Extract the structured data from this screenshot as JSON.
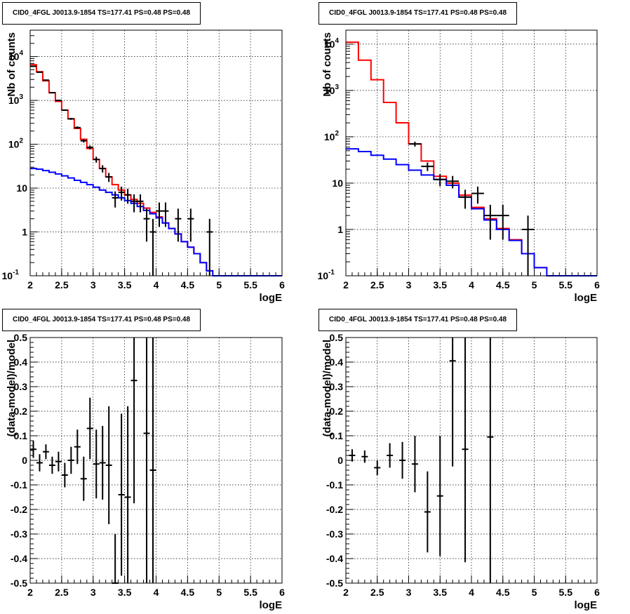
{
  "chart_data": [
    {
      "type": "line",
      "title": "CID0_4FGL J0013.9-1854 TS=177.41 PS=0.48 PS=0.48",
      "xlabel": "logE",
      "ylabel": "Nb of counts",
      "xlim": [
        2,
        6
      ],
      "ylim": [
        0.1,
        40000
      ],
      "yscale": "log",
      "grid": true,
      "x_ticks": [
        "2",
        "2.5",
        "3",
        "3.5",
        "4",
        "4.5",
        "5",
        "5.5",
        "6"
      ],
      "y_ticks": [
        [
          "0.1",
          "10",
          "-1"
        ],
        [
          "1",
          "1",
          ""
        ],
        [
          "10",
          "10",
          ""
        ],
        [
          "100",
          "10",
          "2"
        ],
        [
          "1000",
          "10",
          "3"
        ],
        [
          "10000",
          "10",
          "4"
        ]
      ],
      "bin_edges": [
        2.0,
        2.1,
        2.2,
        2.3,
        2.4,
        2.5,
        2.6,
        2.7,
        2.8,
        2.9,
        3.0,
        3.1,
        3.2,
        3.3,
        3.4,
        3.5,
        3.6,
        3.7,
        3.8,
        3.9,
        4.0,
        4.1,
        4.2,
        4.3,
        4.4,
        4.5,
        4.6,
        4.7,
        4.8,
        4.9,
        5.0,
        5.1,
        5.2,
        5.3,
        5.4,
        5.5,
        5.6,
        5.7,
        5.8,
        5.9,
        6.0
      ],
      "series": [
        {
          "color": "#ff0000",
          "kind": "step",
          "values": [
            6500,
            4500,
            2800,
            1500,
            950,
            600,
            380,
            230,
            130,
            80,
            45,
            28,
            18,
            12,
            9,
            7,
            5.5,
            4.5,
            3.5,
            2.8,
            2.2,
            1.6,
            1.2,
            0.9,
            0.6,
            0.45,
            0.32,
            0.2,
            0.13
          ]
        },
        {
          "color": "#0000ff",
          "kind": "step",
          "values": [
            28,
            27,
            25,
            23,
            21,
            19,
            17,
            15,
            13.5,
            12,
            10.5,
            9,
            8,
            7,
            6,
            5.2,
            4.5,
            3.8,
            3.1,
            2.6,
            2.1,
            1.6,
            1.2,
            0.9,
            0.6,
            0.45,
            0.32,
            0.2,
            0.13,
            0.1,
            0.1,
            0.1,
            0.1,
            0.1,
            0.1,
            0.1,
            0.1,
            0.1,
            0.1,
            0.1
          ]
        },
        {
          "color": "#000000",
          "kind": "points",
          "points": [
            [
              2.05,
              6000,
              77
            ],
            [
              2.15,
              4400,
              66
            ],
            [
              2.25,
              2900,
              54
            ],
            [
              2.35,
              1500,
              39
            ],
            [
              2.45,
              1000,
              32
            ],
            [
              2.55,
              600,
              24
            ],
            [
              2.65,
              380,
              19
            ],
            [
              2.75,
              240,
              15
            ],
            [
              2.85,
              120,
              11
            ],
            [
              2.95,
              85,
              9
            ],
            [
              3.05,
              45,
              7
            ],
            [
              3.15,
              28,
              5.3
            ],
            [
              3.25,
              18,
              4.2
            ],
            [
              3.35,
              6,
              2.4
            ],
            [
              3.45,
              8,
              2.8
            ],
            [
              3.55,
              7,
              2.6
            ],
            [
              3.65,
              5,
              2.2
            ],
            [
              3.75,
              5,
              2.2
            ],
            [
              3.85,
              2,
              1.4
            ],
            [
              3.95,
              1,
              0.99
            ],
            [
              4.05,
              3,
              1.7
            ],
            [
              4.15,
              3,
              1.7
            ],
            [
              4.35,
              2,
              1.4
            ],
            [
              4.55,
              2,
              1.4
            ],
            [
              4.85,
              1,
              0.99
            ]
          ]
        }
      ]
    },
    {
      "type": "line",
      "title": "CID0_4FGL J0013.9-1854 TS=177.41 PS=0.48 PS=0.48",
      "xlabel": "logE",
      "ylabel": "Nb of counts",
      "xlim": [
        2,
        6
      ],
      "ylim": [
        0.1,
        20000
      ],
      "yscale": "log",
      "grid": true,
      "x_ticks": [
        "2",
        "2.5",
        "3",
        "3.5",
        "4",
        "4.5",
        "5",
        "5.5",
        "6"
      ],
      "y_ticks": [
        [
          "0.1",
          "10",
          "-1"
        ],
        [
          "1",
          "1",
          ""
        ],
        [
          "10",
          "10",
          ""
        ],
        [
          "100",
          "10",
          "2"
        ],
        [
          "1000",
          "10",
          "3"
        ],
        [
          "10000",
          "10",
          "4"
        ]
      ],
      "bin_edges": [
        2.0,
        2.2,
        2.4,
        2.6,
        2.8,
        3.0,
        3.2,
        3.4,
        3.6,
        3.8,
        4.0,
        4.2,
        4.4,
        4.6,
        4.8,
        5.0,
        5.2,
        5.4,
        5.6,
        5.8,
        6.0
      ],
      "series": [
        {
          "color": "#ff0000",
          "kind": "step",
          "values": [
            11000,
            4500,
            1700,
            550,
            200,
            70,
            30,
            14,
            10,
            5.5,
            3,
            1.7,
            1.05,
            0.6,
            0.3,
            0.15
          ]
        },
        {
          "color": "#0000ff",
          "kind": "step",
          "values": [
            55,
            48,
            40,
            33,
            25,
            19,
            15,
            12,
            9,
            5,
            2.8,
            1.6,
            1.0,
            0.58,
            0.3,
            0.15,
            0.1,
            0.1,
            0.1,
            0.1
          ]
        },
        {
          "color": "#000000",
          "kind": "points",
          "points": [
            [
              3.1,
              70,
              8.4
            ],
            [
              3.3,
              23,
              4.8
            ],
            [
              3.5,
              12,
              3.5
            ],
            [
              3.7,
              11,
              3.3
            ],
            [
              3.9,
              5,
              2.2
            ],
            [
              4.1,
              6,
              2.4
            ],
            [
              4.3,
              2,
              1.4
            ],
            [
              4.5,
              2,
              1.4
            ],
            [
              4.9,
              1,
              0.99
            ]
          ]
        }
      ]
    },
    {
      "type": "scatter",
      "title": "CID0_4FGL J0013.9-1854 TS=177.41 PS=0.48 PS=0.48",
      "xlabel": "logE",
      "ylabel": "(data-model)/model",
      "xlim": [
        2,
        6
      ],
      "ylim": [
        -0.5,
        0.5
      ],
      "grid": true,
      "x_ticks": [
        "2",
        "2.5",
        "3",
        "3.5",
        "4",
        "4.5",
        "5",
        "5.5",
        "6"
      ],
      "y_ticks": [
        "-0.5",
        "-0.4",
        "-0.3",
        "-0.2",
        "-0.1",
        "0",
        "0.1",
        "0.2",
        "0.3",
        "0.4",
        "0.5"
      ],
      "points": [
        [
          2.05,
          0.045,
          0.035
        ],
        [
          2.15,
          -0.01,
          0.035
        ],
        [
          2.25,
          0.035,
          0.03
        ],
        [
          2.35,
          -0.02,
          0.035
        ],
        [
          2.45,
          -0.005,
          0.04
        ],
        [
          2.55,
          -0.06,
          0.05
        ],
        [
          2.65,
          0.0,
          0.055
        ],
        [
          2.75,
          0.055,
          0.07
        ],
        [
          2.85,
          -0.075,
          0.09
        ],
        [
          2.95,
          0.13,
          0.125
        ],
        [
          3.05,
          -0.015,
          0.14
        ],
        [
          3.15,
          -0.01,
          0.15
        ],
        [
          3.25,
          -0.02,
          0.24
        ],
        [
          3.35,
          -0.5,
          0.2
        ],
        [
          3.45,
          -0.14,
          0.33
        ],
        [
          3.55,
          -0.15,
          0.37
        ],
        [
          3.65,
          0.325,
          0.5
        ],
        [
          3.85,
          0.11,
          0.7
        ],
        [
          3.95,
          -0.04,
          1.0
        ]
      ]
    },
    {
      "type": "scatter",
      "title": "CID0_4FGL J0013.9-1854 TS=177.41 PS=0.48 PS=0.48",
      "xlabel": "logE",
      "ylabel": "(data-model)/model",
      "xlim": [
        2,
        6
      ],
      "ylim": [
        -0.5,
        0.5
      ],
      "grid": true,
      "x_ticks": [
        "2",
        "2.5",
        "3",
        "3.5",
        "4",
        "4.5",
        "5",
        "5.5",
        "6"
      ],
      "y_ticks": [
        "-0.5",
        "-0.4",
        "-0.3",
        "-0.2",
        "-0.1",
        "0",
        "0.1",
        "0.2",
        "0.3",
        "0.4",
        "0.5"
      ],
      "points": [
        [
          2.1,
          0.02,
          0.025
        ],
        [
          2.3,
          0.015,
          0.025
        ],
        [
          2.5,
          -0.03,
          0.03
        ],
        [
          2.7,
          0.02,
          0.05
        ],
        [
          2.9,
          0.0,
          0.075
        ],
        [
          3.1,
          -0.015,
          0.115
        ],
        [
          3.3,
          -0.21,
          0.165
        ],
        [
          3.5,
          -0.145,
          0.245
        ],
        [
          3.7,
          0.405,
          0.43
        ],
        [
          3.9,
          0.045,
          0.46
        ],
        [
          4.3,
          0.095,
          1.0
        ]
      ]
    }
  ]
}
